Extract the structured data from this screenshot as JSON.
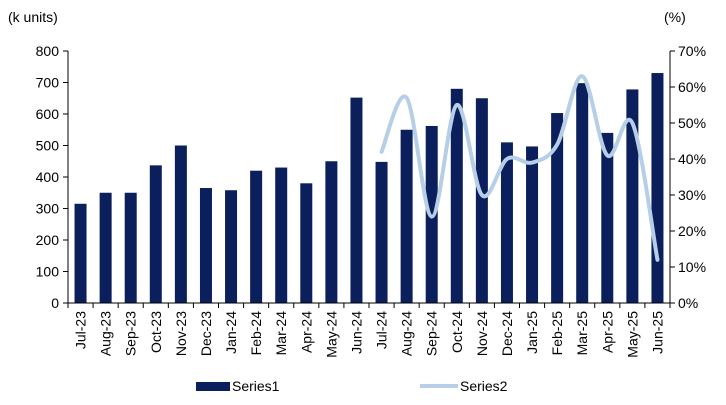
{
  "chart_data": {
    "type": "bar",
    "categories": [
      "Jul-23",
      "Aug-23",
      "Sep-23",
      "Oct-23",
      "Nov-23",
      "Dec-23",
      "Jan-24",
      "Feb-24",
      "Mar-24",
      "Apr-24",
      "May-24",
      "Jun-24",
      "Jul-24",
      "Aug-24",
      "Sep-24",
      "Oct-24",
      "Nov-24",
      "Dec-24",
      "Jan-25",
      "Feb-25",
      "Mar-25",
      "Apr-25",
      "May-25",
      "Jun-25"
    ],
    "series": [
      {
        "name": "Series1",
        "type": "bar",
        "axis": "left",
        "color": "#0a1f5c",
        "values": [
          315,
          350,
          350,
          437,
          500,
          365,
          358,
          420,
          430,
          380,
          450,
          652,
          448,
          550,
          562,
          680,
          650,
          510,
          497,
          603,
          698,
          540,
          678,
          730
        ]
      },
      {
        "name": "Series2",
        "type": "line",
        "axis": "right",
        "color": "#b7cfe6",
        "values": [
          null,
          null,
          null,
          null,
          null,
          null,
          null,
          null,
          null,
          null,
          null,
          null,
          42,
          57,
          24,
          55,
          30,
          40,
          39,
          44,
          63,
          41,
          50,
          12
        ]
      }
    ],
    "left_axis": {
      "unit_label": "(k units)",
      "ylim": [
        0,
        800
      ],
      "ticks": [
        0,
        100,
        200,
        300,
        400,
        500,
        600,
        700,
        800
      ],
      "tick_labels": [
        "0",
        "100",
        "200",
        "300",
        "400",
        "500",
        "600",
        "700",
        "800"
      ]
    },
    "right_axis": {
      "unit_label": "(%)",
      "ylim": [
        0,
        70
      ],
      "ticks": [
        0,
        10,
        20,
        30,
        40,
        50,
        60,
        70
      ],
      "tick_labels": [
        "0%",
        "10%",
        "20%",
        "30%",
        "40%",
        "50%",
        "60%",
        "70%"
      ]
    },
    "grid": false,
    "legend": {
      "position": "bottom"
    }
  }
}
